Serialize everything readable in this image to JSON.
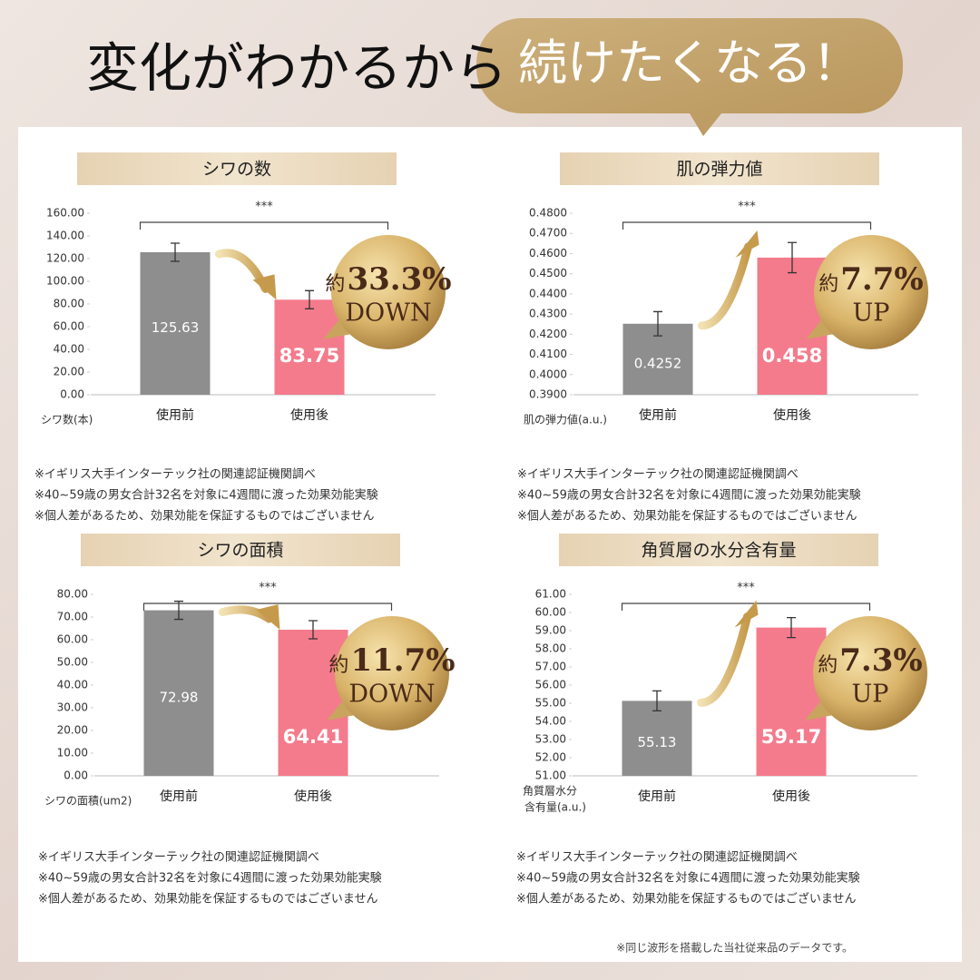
{
  "header": {
    "lead": "変化がわかるから",
    "highlight": "続けたくなる！"
  },
  "chart_data": [
    {
      "type": "bar",
      "title": "シワの数",
      "categories": [
        "使用前",
        "使用後"
      ],
      "values": [
        125.63,
        83.75
      ],
      "errors": [
        8,
        8
      ],
      "colors": [
        "#8e8e8e",
        "#f47b8c"
      ],
      "ylim": [
        0,
        160
      ],
      "yticks": [
        {
          "value": 0,
          "label": "0.00"
        },
        {
          "value": 20,
          "label": "20.00"
        },
        {
          "value": 40,
          "label": "40.00"
        },
        {
          "value": 60,
          "label": "60.00"
        },
        {
          "value": 80,
          "label": "80.00"
        },
        {
          "value": 100,
          "label": "100.00"
        },
        {
          "value": 120,
          "label": "120.00"
        },
        {
          "value": 140,
          "label": "140.00"
        },
        {
          "value": 160,
          "label": "160.00"
        }
      ],
      "ylabel": "シワ数(本)",
      "significance": "***",
      "badge": {
        "prefix": "約",
        "value": "33.3%",
        "word": "DOWN"
      },
      "notes": [
        "※イギリス大手インターテック社の関連認証機関調べ",
        "※40~59歳の男女合計32名を対象に4週間に渡った効果効能実験",
        "※個人差があるため、効果効能を保証するものではございません"
      ]
    },
    {
      "type": "bar",
      "title": "肌の弾力値",
      "categories": [
        "使用前",
        "使用後"
      ],
      "values": [
        0.4252,
        0.458
      ],
      "errors": [
        0.006,
        0.0075
      ],
      "colors": [
        "#8e8e8e",
        "#f47b8c"
      ],
      "ylim": [
        0.39,
        0.48
      ],
      "yticks": [
        {
          "value": 0.39,
          "label": "0.3900"
        },
        {
          "value": 0.4,
          "label": "0.4000"
        },
        {
          "value": 0.41,
          "label": "0.4100"
        },
        {
          "value": 0.42,
          "label": "0.4200"
        },
        {
          "value": 0.43,
          "label": "0.4300"
        },
        {
          "value": 0.44,
          "label": "0.4400"
        },
        {
          "value": 0.45,
          "label": "0.4500"
        },
        {
          "value": 0.46,
          "label": "0.4600"
        },
        {
          "value": 0.47,
          "label": "0.4700"
        },
        {
          "value": 0.48,
          "label": "0.4800"
        }
      ],
      "ylabel": "肌の弾力値(a.u.)",
      "significance": "***",
      "badge": {
        "prefix": "約",
        "value": "7.7%",
        "word": "UP"
      },
      "notes": [
        "※イギリス大手インターテック社の関連認証機関調べ",
        "※40~59歳の男女合計32名を対象に4週間に渡った効果効能実験",
        "※個人差があるため、効果効能を保証するものではございません"
      ]
    },
    {
      "type": "bar",
      "title": "シワの面積",
      "categories": [
        "使用前",
        "使用後"
      ],
      "values": [
        72.98,
        64.41
      ],
      "errors": [
        4,
        4
      ],
      "colors": [
        "#8e8e8e",
        "#f47b8c"
      ],
      "ylim": [
        0,
        80
      ],
      "yticks": [
        {
          "value": 0,
          "label": "0.00"
        },
        {
          "value": 10,
          "label": "10.00"
        },
        {
          "value": 20,
          "label": "20.00"
        },
        {
          "value": 30,
          "label": "30.00"
        },
        {
          "value": 40,
          "label": "40.00"
        },
        {
          "value": 50,
          "label": "50.00"
        },
        {
          "value": 60,
          "label": "60.00"
        },
        {
          "value": 70,
          "label": "70.00"
        },
        {
          "value": 80,
          "label": "80.00"
        }
      ],
      "ylabel": "シワの面積(um2)",
      "significance": "***",
      "badge": {
        "prefix": "約",
        "value": "11.7%",
        "word": "DOWN"
      },
      "notes": [
        "※イギリス大手インターテック社の関連認証機関調べ",
        "※40~59歳の男女合計32名を対象に4週間に渡った効果効能実験",
        "※個人差があるため、効果効能を保証するものではございません"
      ]
    },
    {
      "type": "bar",
      "title": "角質層の水分含有量",
      "categories": [
        "使用前",
        "使用後"
      ],
      "values": [
        55.13,
        59.17
      ],
      "errors": [
        0.55,
        0.55
      ],
      "colors": [
        "#8e8e8e",
        "#f47b8c"
      ],
      "ylim": [
        51,
        61
      ],
      "yticks": [
        {
          "value": 51,
          "label": "51.00"
        },
        {
          "value": 52,
          "label": "52.00"
        },
        {
          "value": 53,
          "label": "53.00"
        },
        {
          "value": 54,
          "label": "54.00"
        },
        {
          "value": 55,
          "label": "55.00"
        },
        {
          "value": 56,
          "label": "56.00"
        },
        {
          "value": 57,
          "label": "57.00"
        },
        {
          "value": 58,
          "label": "58.00"
        },
        {
          "value": 59,
          "label": "59.00"
        },
        {
          "value": 60,
          "label": "60.00"
        },
        {
          "value": 61,
          "label": "61.00"
        }
      ],
      "ylabel": [
        "角質層水分",
        "含有量(a.u.)"
      ],
      "significance": "***",
      "badge": {
        "prefix": "約",
        "value": "7.3%",
        "word": "UP"
      },
      "notes": [
        "※イギリス大手インターテック社の関連認証機関調べ",
        "※40~59歳の男女合計32名を対象に4週間に渡った効果効能実験",
        "※個人差があるため、効果効能を保証するものではございません"
      ]
    }
  ],
  "footer": "※同じ波形を搭載した当社従来品のデータです。"
}
